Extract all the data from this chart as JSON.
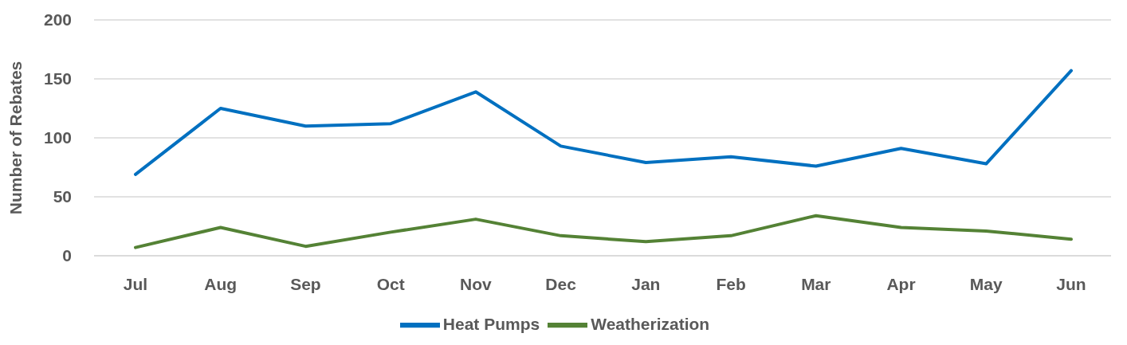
{
  "chart_data": {
    "type": "line",
    "ylabel": "Number of Rebates",
    "categories": [
      "Jul",
      "Aug",
      "Sep",
      "Oct",
      "Nov",
      "Dec",
      "Jan",
      "Feb",
      "Mar",
      "Apr",
      "May",
      "Jun"
    ],
    "series": [
      {
        "name": "Heat Pumps",
        "color": "#0070c0",
        "values": [
          69,
          125,
          110,
          112,
          139,
          93,
          79,
          84,
          76,
          91,
          78,
          157
        ]
      },
      {
        "name": "Weatherization",
        "color": "#548235",
        "values": [
          7,
          24,
          8,
          20,
          31,
          17,
          12,
          17,
          34,
          24,
          21,
          14
        ]
      }
    ],
    "ylim": [
      0,
      200
    ],
    "yticks": [
      0,
      50,
      100,
      150,
      200
    ],
    "grid": "y",
    "legend": "bottom",
    "marker": "none",
    "line_style": "solid"
  }
}
